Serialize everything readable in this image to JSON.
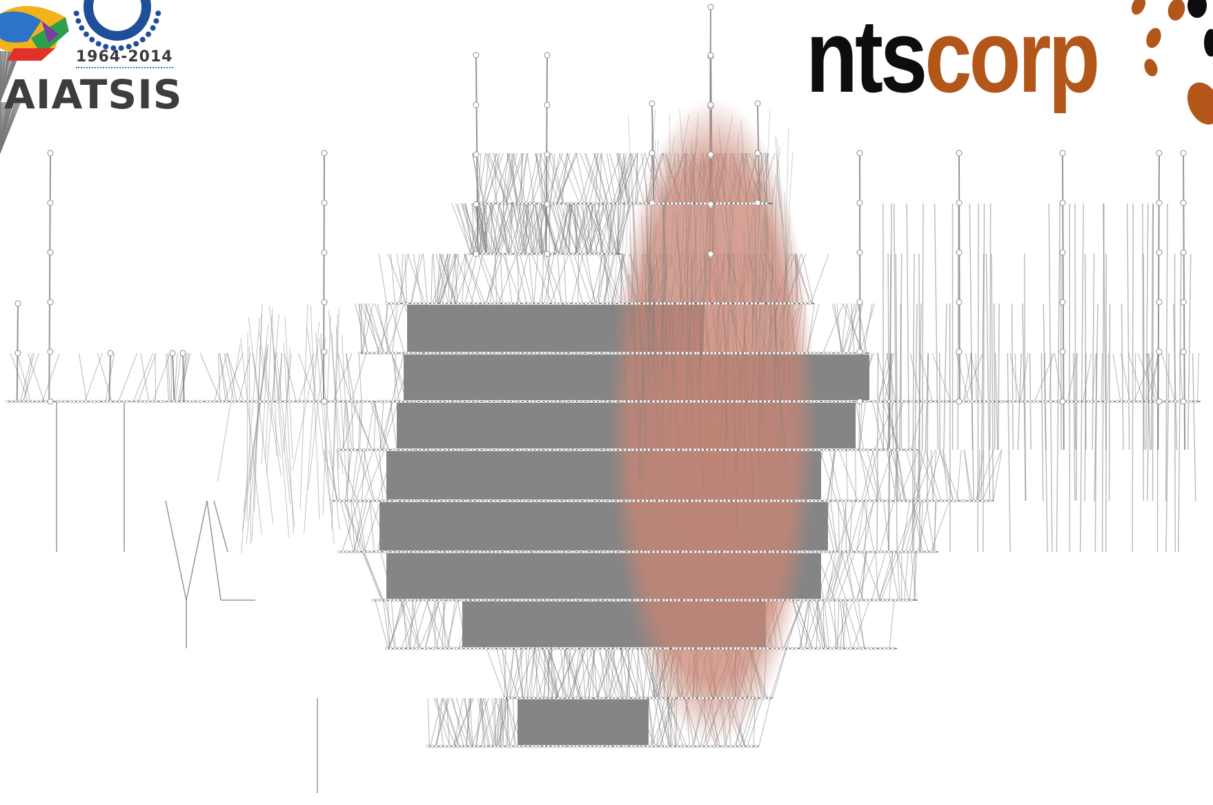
{
  "logos": {
    "left": {
      "years": "1964-2014",
      "name": "AIATSIS",
      "colors": {
        "text": "#3d3d3d",
        "ring": "#1f4f9a",
        "accent": [
          "#e0312b",
          "#f2b21b",
          "#2f9e4a",
          "#2b74c7"
        ]
      }
    },
    "right": {
      "word_part_1": "nts",
      "word_part_2": "corp",
      "colors": {
        "part_1": "#0d0d0d",
        "part_2": "#b2561a"
      }
    }
  },
  "diagram": {
    "type": "network-graph",
    "layout": "layered-horizontal-rows",
    "colors": {
      "edges": "#7a7a7a",
      "band_fill": "#858585",
      "nodes": "#ffffff",
      "highlight": "#c98574"
    },
    "highlight_shape": "ellipse"
  }
}
